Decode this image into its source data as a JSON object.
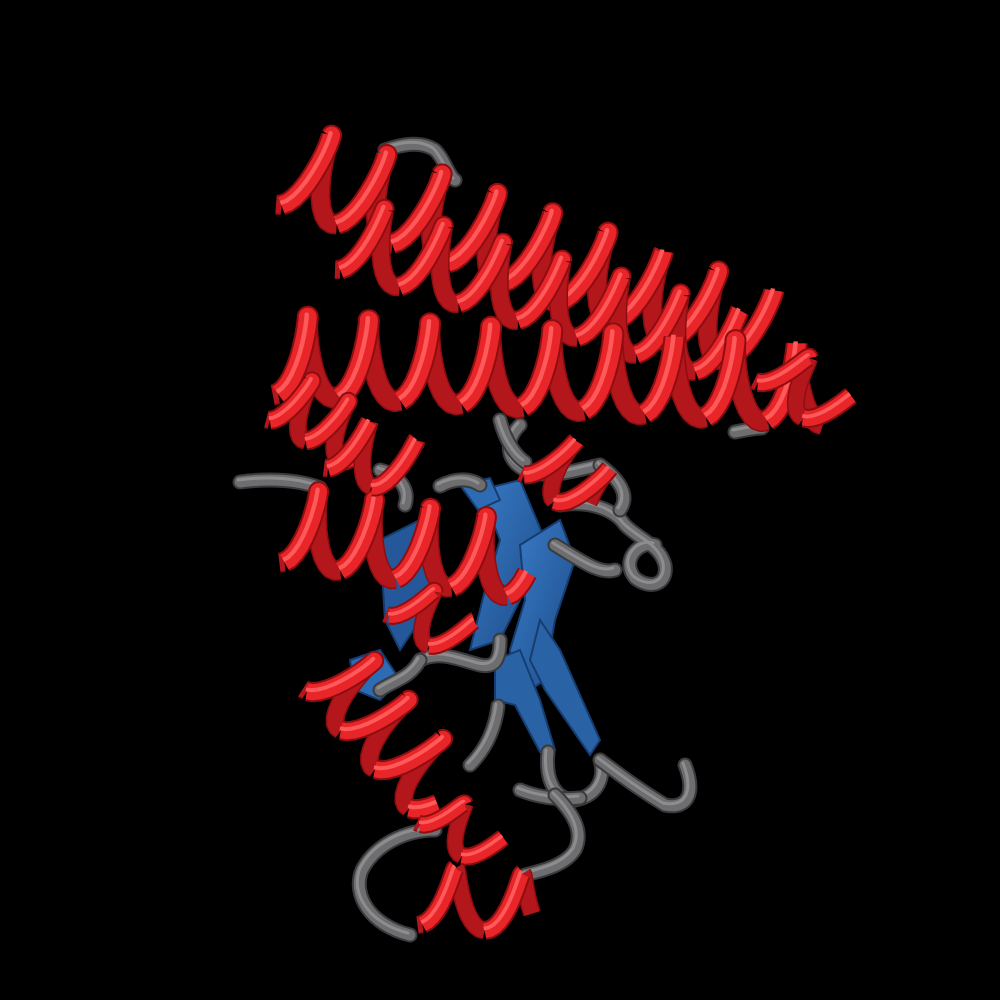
{
  "scene": {
    "subject": "protein-cartoon",
    "background_color": "#000000",
    "colors": {
      "helix": "#e8262a",
      "helix_dark": "#8e0d10",
      "helix_light": "#ff5a5a",
      "sheet": "#2e6bb5",
      "sheet_dark": "#163d70",
      "coil": "#6e6e70",
      "coil_dark": "#3a3a3c"
    }
  }
}
